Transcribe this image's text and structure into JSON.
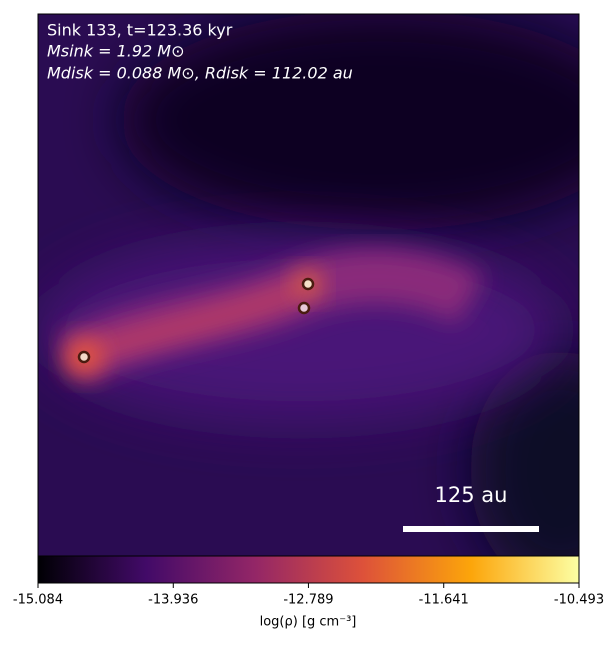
{
  "chart_data": {
    "type": "density-map",
    "annotations": [
      "Sink 133, t=123.36 kyr",
      "Msink = 1.92 M⊙",
      "Mdisk = 0.088 M⊙, Rdisk = 112.02 au"
    ],
    "scale_bar_label": "125 au",
    "colorbar": {
      "label": "log(ρ) [g cm⁻³]",
      "clim": [
        -15.084,
        -10.493
      ],
      "ticks": [
        -15.084,
        -13.936,
        -12.789,
        -11.641,
        -10.493
      ],
      "colormap": "inferno"
    }
  }
}
